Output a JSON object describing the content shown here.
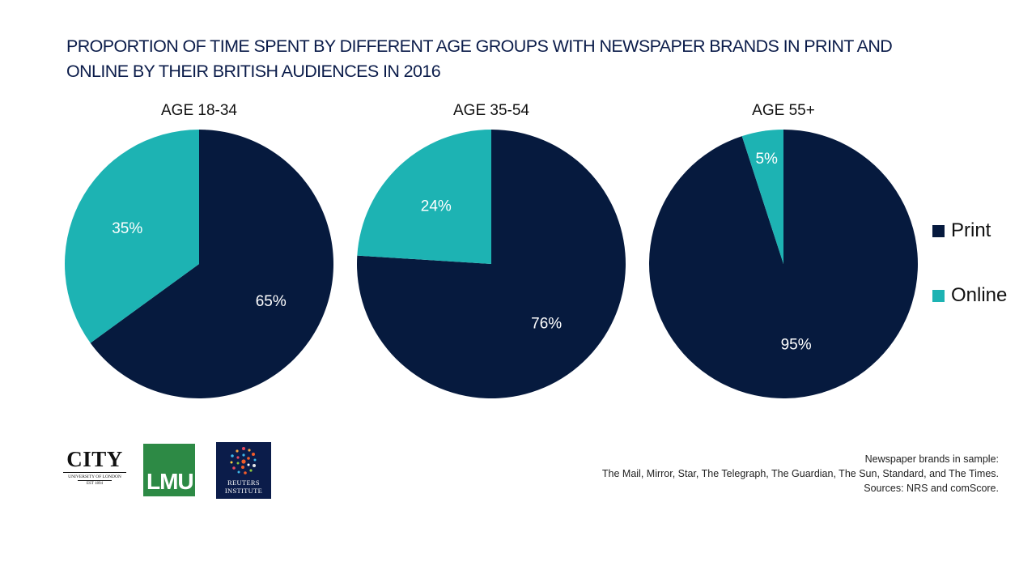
{
  "title": {
    "line1": "PROPORTION OF TIME SPENT BY DIFFERENT AGE GROUPS WITH NEWSPAPER BRANDS IN PRINT AND",
    "line2": "ONLINE BY THEIR BRITISH AUDIENCES IN 2016"
  },
  "colors": {
    "print": "#061a3e",
    "online": "#1db3b3"
  },
  "chart_data": [
    {
      "type": "pie",
      "title": "AGE 18-34",
      "slices": [
        {
          "label": "Print",
          "value": 65,
          "display": "65%"
        },
        {
          "label": "Online",
          "value": 35,
          "display": "35%"
        }
      ]
    },
    {
      "type": "pie",
      "title": "AGE 35-54",
      "slices": [
        {
          "label": "Print",
          "value": 76,
          "display": "76%"
        },
        {
          "label": "Online",
          "value": 24,
          "display": "24%"
        }
      ]
    },
    {
      "type": "pie",
      "title": "AGE 55+",
      "slices": [
        {
          "label": "Print",
          "value": 95,
          "display": "95%"
        },
        {
          "label": "Online",
          "value": 5,
          "display": "5%"
        }
      ]
    }
  ],
  "legend": {
    "placement": "right",
    "items": [
      {
        "label": "Print",
        "color": "#061a3e"
      },
      {
        "label": "Online",
        "color": "#1db3b3"
      }
    ]
  },
  "logos": {
    "city": {
      "name": "CITY",
      "subtitle": "UNIVERSITY OF LONDON",
      "est": "EST 1894"
    },
    "lmu": {
      "name": "LMU"
    },
    "reuters": {
      "line1": "REUTERS",
      "line2": "INSTITUTE"
    }
  },
  "footnote": {
    "line1": "Newspaper brands in sample:",
    "line2": "The Mail, Mirror, Star, The Telegraph, The Guardian, The Sun, Standard, and The Times.",
    "line3": "Sources: NRS and comScore."
  }
}
